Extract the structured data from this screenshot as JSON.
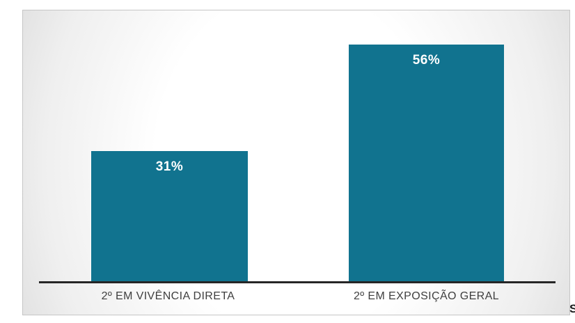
{
  "page": {
    "clipped_text": "S"
  },
  "chart_data": {
    "type": "bar",
    "categories": [
      "2º EM VIVÊNCIA DIRETA",
      "2º EM EXPOSIÇÃO GERAL"
    ],
    "values": [
      31,
      56
    ],
    "labels": [
      "31%",
      "56%"
    ],
    "title": "",
    "xlabel": "",
    "ylabel": "",
    "ylim": [
      0,
      64
    ],
    "grid": false,
    "legend": false,
    "bar_color": "#11738F",
    "value_label_color": "#FFFFFF",
    "category_label_color": "#3F3F3F",
    "axis_line_color": "#262626"
  }
}
